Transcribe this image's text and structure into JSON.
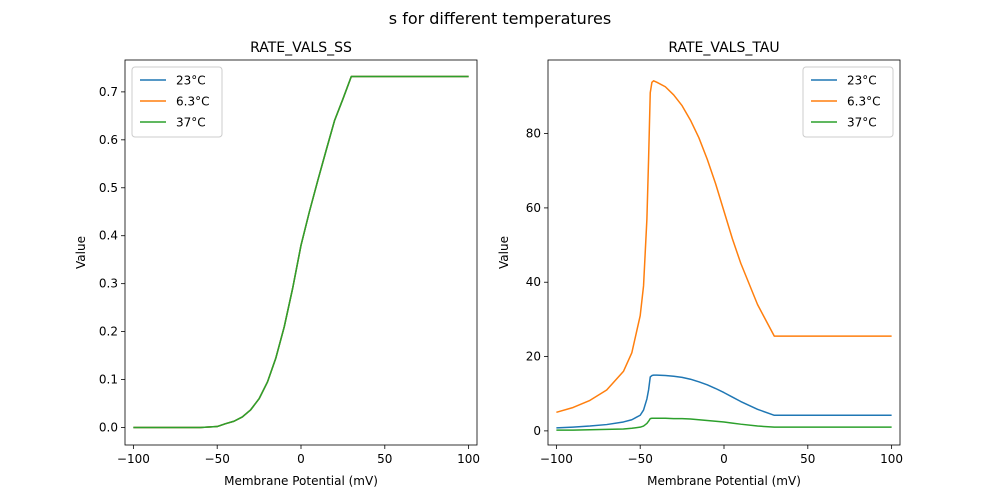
{
  "suptitle": "s for different temperatures",
  "colors": {
    "23C": "#1f77b4",
    "6.3C": "#ff7f0e",
    "37C": "#2ca02c"
  },
  "chart_data": [
    {
      "type": "line",
      "title": "RATE_VALS_SS",
      "xlabel": "Membrane Potential (mV)",
      "ylabel": "Value",
      "xlim": [
        -105,
        105
      ],
      "ylim": [
        -0.0365,
        0.7665
      ],
      "xticks": [
        -100,
        -50,
        0,
        50,
        100
      ],
      "xtick_labels": [
        "−100",
        "−50",
        "0",
        "50",
        "100"
      ],
      "yticks": [
        0.0,
        0.1,
        0.2,
        0.3,
        0.4,
        0.5,
        0.6,
        0.7
      ],
      "ytick_labels": [
        "0.0",
        "0.1",
        "0.2",
        "0.3",
        "0.4",
        "0.5",
        "0.6",
        "0.7"
      ],
      "legend": "top-left",
      "x": [
        -100,
        -90,
        -80,
        -70,
        -60,
        -50,
        -45,
        -40,
        -35,
        -30,
        -25,
        -20,
        -15,
        -10,
        -5,
        0,
        5,
        10,
        15,
        20,
        25,
        30,
        40,
        50,
        60,
        70,
        80,
        90,
        100
      ],
      "series": [
        {
          "name": "23°C",
          "color": "#1f77b4",
          "values": [
            0,
            0,
            0,
            0,
            0,
            0.002,
            0.008,
            0.013,
            0.022,
            0.037,
            0.06,
            0.095,
            0.145,
            0.21,
            0.29,
            0.38,
            0.45,
            0.515,
            0.578,
            0.64,
            0.685,
            0.732,
            0.732,
            0.732,
            0.732,
            0.732,
            0.732,
            0.732,
            0.732
          ]
        },
        {
          "name": "6.3°C",
          "color": "#ff7f0e",
          "values": [
            0,
            0,
            0,
            0,
            0,
            0.002,
            0.008,
            0.013,
            0.022,
            0.037,
            0.06,
            0.095,
            0.145,
            0.21,
            0.29,
            0.38,
            0.45,
            0.515,
            0.578,
            0.64,
            0.685,
            0.732,
            0.732,
            0.732,
            0.732,
            0.732,
            0.732,
            0.732,
            0.732
          ]
        },
        {
          "name": "37°C",
          "color": "#2ca02c",
          "values": [
            0,
            0,
            0,
            0,
            0,
            0.002,
            0.008,
            0.013,
            0.022,
            0.037,
            0.06,
            0.095,
            0.145,
            0.21,
            0.29,
            0.38,
            0.45,
            0.515,
            0.578,
            0.64,
            0.685,
            0.732,
            0.732,
            0.732,
            0.732,
            0.732,
            0.732,
            0.732,
            0.732
          ]
        }
      ]
    },
    {
      "type": "line",
      "title": "RATE_VALS_TAU",
      "xlabel": "Membrane Potential (mV)",
      "ylabel": "Value",
      "xlim": [
        -105,
        105
      ],
      "ylim": [
        -3.8,
        99.8
      ],
      "xticks": [
        -100,
        -50,
        0,
        50,
        100
      ],
      "xtick_labels": [
        "−100",
        "−50",
        "0",
        "50",
        "100"
      ],
      "yticks": [
        0,
        20,
        40,
        60,
        80
      ],
      "ytick_labels": [
        "0",
        "20",
        "40",
        "60",
        "80"
      ],
      "legend": "top-right",
      "x": [
        -100,
        -90,
        -80,
        -70,
        -60,
        -55,
        -50,
        -48,
        -46,
        -45,
        -44,
        -43,
        -42,
        -40,
        -35,
        -30,
        -25,
        -20,
        -15,
        -10,
        -5,
        0,
        5,
        10,
        20,
        30,
        40,
        50,
        60,
        70,
        80,
        90,
        100
      ],
      "series": [
        {
          "name": "23°C",
          "color": "#1f77b4",
          "values": [
            0.8,
            1.0,
            1.3,
            1.7,
            2.4,
            3.0,
            4.2,
            5.6,
            8.6,
            11.0,
            14.5,
            14.9,
            15.0,
            15.0,
            14.9,
            14.7,
            14.4,
            13.9,
            13.2,
            12.4,
            11.4,
            10.3,
            9.1,
            7.9,
            5.8,
            4.2,
            4.2,
            4.2,
            4.2,
            4.2,
            4.2,
            4.2,
            4.2
          ]
        },
        {
          "name": "6.3°C",
          "color": "#ff7f0e",
          "values": [
            5.0,
            6.3,
            8.2,
            11.0,
            16.0,
            21.0,
            31.0,
            39.0,
            57.0,
            73.0,
            91.0,
            93.8,
            94.2,
            93.8,
            92.6,
            90.4,
            87.5,
            83.6,
            78.9,
            73.1,
            66.5,
            59.1,
            51.7,
            45.1,
            34.0,
            25.5,
            25.5,
            25.5,
            25.5,
            25.5,
            25.5,
            25.5,
            25.5
          ]
        },
        {
          "name": "37°C",
          "color": "#2ca02c",
          "values": [
            0.2,
            0.2,
            0.3,
            0.4,
            0.5,
            0.7,
            1.0,
            1.3,
            2.0,
            2.6,
            3.3,
            3.4,
            3.4,
            3.4,
            3.4,
            3.3,
            3.3,
            3.2,
            3.0,
            2.8,
            2.6,
            2.4,
            2.1,
            1.8,
            1.3,
            1.0,
            1.0,
            1.0,
            1.0,
            1.0,
            1.0,
            1.0,
            1.0
          ]
        }
      ]
    }
  ]
}
